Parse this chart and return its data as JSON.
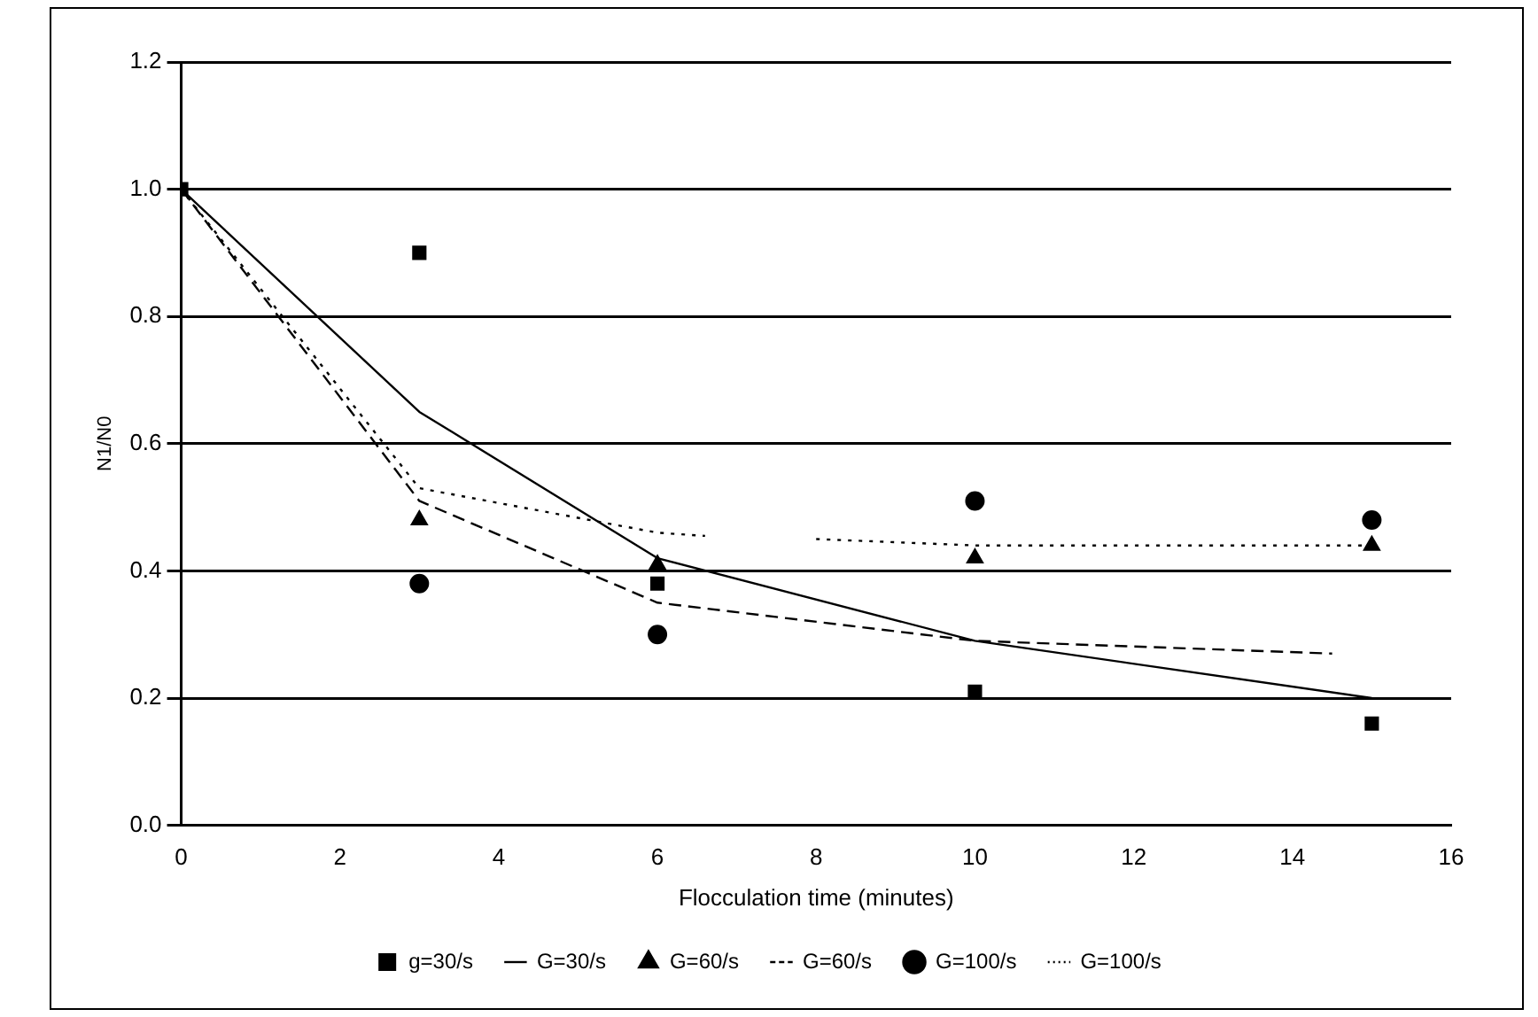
{
  "chart_data": {
    "type": "scatter",
    "xlabel": "Flocculation time (minutes)",
    "ylabel": "N1/N0",
    "xlim": [
      0,
      16
    ],
    "xticks": [
      0,
      2,
      4,
      6,
      8,
      10,
      12,
      14,
      16
    ],
    "ylim": [
      0,
      1.2
    ],
    "yticks": [
      {
        "value": 0,
        "label": "0.0"
      },
      0.2,
      0.4,
      0.6,
      0.8,
      {
        "value": 1,
        "label": "1.0"
      },
      1.2
    ],
    "grid": "y",
    "legend": "bottom",
    "series": [
      {
        "name": "g=30/s",
        "marker": "square",
        "color": "#000000",
        "x": [
          0,
          3,
          6,
          10,
          15
        ],
        "values": [
          1.0,
          0.9,
          0.38,
          0.21,
          0.16
        ]
      },
      {
        "name": "G=30/s",
        "type": "line",
        "marker": "none",
        "line_style": "solid",
        "color": "#000000",
        "x": [
          0,
          3,
          6,
          10,
          15
        ],
        "values": [
          1.0,
          0.65,
          0.42,
          0.29,
          0.2
        ]
      },
      {
        "name": "G=60/s",
        "marker": "triangle",
        "color": "#000000",
        "x": [
          3,
          6,
          10,
          15
        ],
        "values": [
          0.48,
          0.41,
          0.42,
          0.44
        ]
      },
      {
        "name": "G=60/s",
        "type": "line",
        "marker": "none",
        "line_style": "dashed",
        "color": "#000000",
        "x": [
          0,
          3,
          6,
          10,
          14.5
        ],
        "values": [
          1.0,
          0.51,
          0.35,
          0.29,
          0.27
        ]
      },
      {
        "name": "G=100/s",
        "marker": "circle",
        "color": "#000000",
        "x": [
          3,
          6,
          10,
          15
        ],
        "values": [
          0.38,
          0.3,
          0.51,
          0.48
        ]
      },
      {
        "name": "G=100/s",
        "type": "line",
        "marker": "none",
        "line_style": "dotted",
        "color": "#000000",
        "x": [
          0,
          3,
          6,
          6.6,
          7.3,
          8,
          10,
          15
        ],
        "values": [
          1.0,
          0.53,
          0.46,
          0.455,
          null,
          0.45,
          0.44,
          0.44
        ]
      }
    ]
  }
}
